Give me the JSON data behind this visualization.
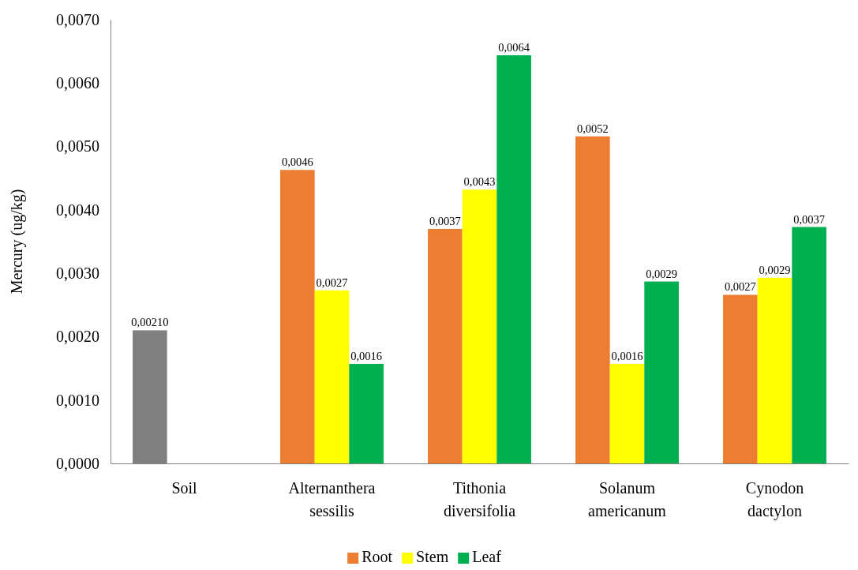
{
  "chart_data": {
    "type": "bar",
    "ylabel": "Mercury (ug/kg)",
    "categories": [
      "Soil",
      "Alternanthera sessilis",
      "Tithonia diversifolia",
      "Solanum americanum",
      "Cynodon dactylon"
    ],
    "series": [
      {
        "name": "Root",
        "color": "#ed7d31",
        "colors": [
          "#808080",
          "#ed7d31",
          "#ed7d31",
          "#ed7d31",
          "#ed7d31"
        ],
        "values": [
          0.0021,
          0.00463,
          0.0037,
          0.00516,
          0.00266
        ],
        "value_labels": [
          "0,00210",
          "0,0046",
          "0,0037",
          "0,0052",
          "0,0027"
        ]
      },
      {
        "name": "Stem",
        "color": "#ffff00",
        "values": [
          null,
          0.00273,
          0.00432,
          0.00157,
          0.00293
        ],
        "value_labels": [
          null,
          "0,0027",
          "0,0043",
          "0,0016",
          "0,0029"
        ]
      },
      {
        "name": "Leaf",
        "color": "#00b050",
        "values": [
          null,
          0.00157,
          0.00644,
          0.00287,
          0.00373
        ],
        "value_labels": [
          null,
          "0,0016",
          "0,0064",
          "0,0029",
          "0,0037"
        ]
      }
    ],
    "ylim": [
      0,
      0.007
    ],
    "yticks": [
      {
        "value": 0,
        "label": "0,0000"
      },
      {
        "value": 0.001,
        "label": "0,0010"
      },
      {
        "value": 0.002,
        "label": "0,0020"
      },
      {
        "value": 0.003,
        "label": "0,0030"
      },
      {
        "value": 0.004,
        "label": "0,0040"
      },
      {
        "value": 0.005,
        "label": "0,0050"
      },
      {
        "value": 0.006,
        "label": "0,0060"
      },
      {
        "value": 0.007,
        "label": "0,0070"
      }
    ],
    "grid": false,
    "legend": "bottom"
  }
}
